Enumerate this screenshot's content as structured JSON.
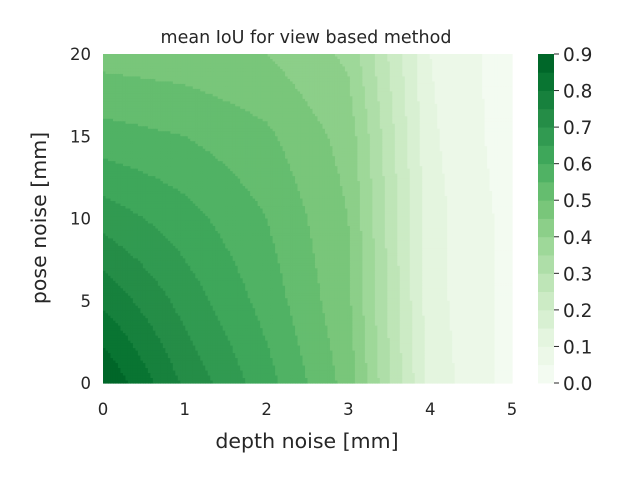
{
  "chart_data": {
    "type": "contour",
    "title": "mean IoU for view based method",
    "xlabel": "depth noise [mm]",
    "ylabel": "pose noise [mm]",
    "xlim": [
      0,
      5
    ],
    "ylim": [
      0,
      20
    ],
    "x_ticks": [
      "0",
      "1",
      "2",
      "3",
      "4",
      "5"
    ],
    "y_ticks": [
      "0",
      "5",
      "10",
      "15",
      "20"
    ],
    "x_grid": [
      0,
      1,
      2,
      3,
      4,
      5
    ],
    "y_grid": [
      0,
      5,
      10,
      15,
      20
    ],
    "z": [
      [
        0.9,
        0.74,
        0.62,
        0.48,
        0.13,
        0.03
      ],
      [
        0.79,
        0.68,
        0.58,
        0.46,
        0.12,
        0.03
      ],
      [
        0.68,
        0.62,
        0.55,
        0.45,
        0.12,
        0.03
      ],
      [
        0.57,
        0.55,
        0.51,
        0.43,
        0.11,
        0.02
      ],
      [
        0.48,
        0.47,
        0.45,
        0.39,
        0.1,
        0.02
      ]
    ],
    "levels": [
      0.0,
      0.05,
      0.1,
      0.15,
      0.2,
      0.25,
      0.3,
      0.35,
      0.4,
      0.45,
      0.5,
      0.55,
      0.6,
      0.65,
      0.7,
      0.75,
      0.8,
      0.85,
      0.9
    ],
    "colorbar": {
      "ticks": [
        "0.0",
        "0.1",
        "0.2",
        "0.3",
        "0.4",
        "0.5",
        "0.6",
        "0.7",
        "0.8",
        "0.9"
      ],
      "range": [
        0,
        0.9
      ]
    },
    "colormap": "Greens",
    "grid": false
  }
}
